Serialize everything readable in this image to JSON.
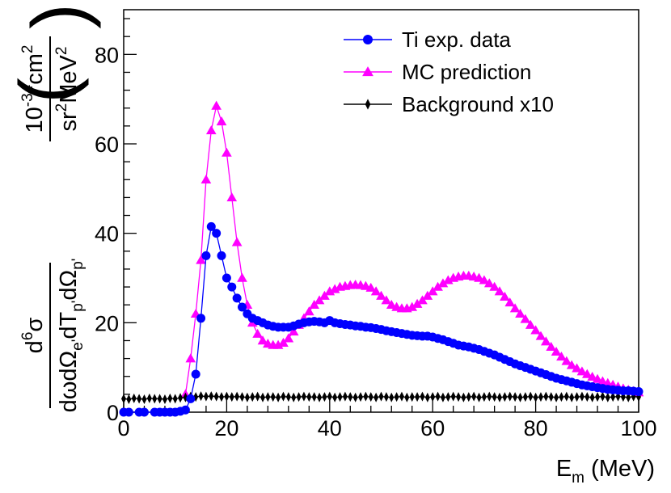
{
  "chart_data": {
    "type": "line",
    "title": "",
    "xlabel": "E",
    "xlabel_sub": "m",
    "xlabel_unit": " (MeV)",
    "ylabel_numerator": "d6σ",
    "ylabel_denominator": "dωdΩe'dTp'dΩp'",
    "ylabel_units_numerator": "10-34cm2",
    "ylabel_units_denominator": "sr2MeV2",
    "xlim": [
      0,
      100
    ],
    "ylim": [
      0,
      90
    ],
    "x_ticks": [
      0,
      20,
      40,
      60,
      80,
      100
    ],
    "y_ticks": [
      0,
      20,
      40,
      60,
      80
    ],
    "grid": false,
    "legend_position": "top-right",
    "series": [
      {
        "name": "Ti exp. data",
        "color": "#0000ff",
        "marker": "circle",
        "x": [
          0,
          1,
          3,
          4,
          6,
          7,
          8,
          9,
          10,
          11,
          12,
          13,
          14,
          15,
          16,
          17,
          18,
          19,
          20,
          21,
          22,
          23,
          24,
          25,
          26,
          27,
          28,
          29,
          30,
          31,
          32,
          33,
          34,
          35,
          36,
          37,
          38,
          39,
          40,
          41,
          42,
          43,
          44,
          45,
          46,
          47,
          48,
          49,
          50,
          51,
          52,
          53,
          54,
          55,
          56,
          57,
          58,
          59,
          60,
          61,
          62,
          63,
          64,
          65,
          66,
          67,
          68,
          69,
          70,
          71,
          72,
          73,
          74,
          75,
          76,
          77,
          78,
          79,
          80,
          81,
          82,
          83,
          84,
          85,
          86,
          87,
          88,
          89,
          90,
          91,
          92,
          93,
          94,
          95,
          96,
          97,
          98,
          99,
          100
        ],
        "y": [
          0,
          0,
          0,
          0,
          0,
          0,
          0,
          0,
          0,
          0.2,
          0.5,
          3,
          8.5,
          21,
          35,
          41.5,
          40,
          35,
          30,
          28,
          25.5,
          23.5,
          22,
          21,
          20.5,
          20,
          19.5,
          19.2,
          19,
          19,
          19,
          19.3,
          19.7,
          20,
          20.2,
          20.3,
          20.2,
          20,
          20.5,
          20,
          19.8,
          19.6,
          19.5,
          19.3,
          19.2,
          19,
          18.9,
          18.7,
          18.5,
          18.2,
          18,
          17.8,
          17.6,
          17.4,
          17.2,
          17.1,
          17,
          17,
          16.8,
          16.5,
          16.2,
          15.8,
          15.4,
          15,
          14.8,
          14.6,
          14.3,
          14,
          13.6,
          13.2,
          12.8,
          12.3,
          11.8,
          11.3,
          10.8,
          10.4,
          10,
          9.6,
          9.2,
          8.8,
          8.4,
          8,
          7.6,
          7.3,
          7,
          6.7,
          6.4,
          6.1,
          5.9,
          5.7,
          5.5,
          5.3,
          5.1,
          5,
          4.9,
          4.8,
          4.8,
          4.7,
          4.6
        ]
      },
      {
        "name": "MC prediction",
        "color": "#ff00ff",
        "marker": "triangle",
        "x": [
          12,
          13,
          14,
          15,
          16,
          17,
          18,
          19,
          20,
          21,
          22,
          23,
          24,
          25,
          26,
          27,
          28,
          29,
          30,
          31,
          32,
          33,
          34,
          35,
          36,
          37,
          38,
          39,
          40,
          41,
          42,
          43,
          44,
          45,
          46,
          47,
          48,
          49,
          50,
          51,
          52,
          53,
          54,
          55,
          56,
          57,
          58,
          59,
          60,
          61,
          62,
          63,
          64,
          65,
          66,
          67,
          68,
          69,
          70,
          71,
          72,
          73,
          74,
          75,
          76,
          77,
          78,
          79,
          80,
          81,
          82,
          83,
          84,
          85,
          86,
          87,
          88,
          89,
          90,
          91,
          92,
          93,
          94,
          95,
          96,
          97,
          98,
          99,
          100
        ],
        "y": [
          4,
          12,
          22,
          34,
          52,
          63,
          68.5,
          65,
          58,
          48,
          38,
          30,
          24,
          20,
          17.5,
          16,
          15.3,
          15,
          15,
          15.5,
          16.5,
          18,
          19.5,
          21,
          22.5,
          24,
          25,
          26,
          27,
          27.5,
          28,
          28.2,
          28.4,
          28.5,
          28.4,
          28.2,
          27.8,
          27,
          26,
          25,
          24,
          23.5,
          23.2,
          23.2,
          23.5,
          24.2,
          25,
          26,
          27,
          28,
          28.8,
          29.5,
          30,
          30.3,
          30.5,
          30.5,
          30.3,
          30,
          29.5,
          28.8,
          28,
          27,
          25.8,
          24.5,
          23.2,
          22,
          20.8,
          19.5,
          18.3,
          17,
          15.8,
          14.6,
          13.5,
          12.4,
          11.4,
          10.5,
          9.8,
          9.1,
          8.5,
          7.9,
          7.4,
          6.9,
          6.5,
          6.1,
          5.7,
          5.3,
          5,
          4.7,
          4.4
        ]
      },
      {
        "name": "Background x10",
        "color": "#000000",
        "marker": "diamond",
        "x": [
          0,
          1,
          2,
          3,
          4,
          5,
          6,
          7,
          8,
          9,
          10,
          11,
          12,
          13,
          14,
          15,
          16,
          17,
          18,
          19,
          20,
          21,
          22,
          23,
          24,
          25,
          26,
          27,
          28,
          29,
          30,
          31,
          32,
          33,
          34,
          35,
          36,
          37,
          38,
          39,
          40,
          41,
          42,
          43,
          44,
          45,
          46,
          47,
          48,
          49,
          50,
          51,
          52,
          53,
          54,
          55,
          56,
          57,
          58,
          59,
          60,
          61,
          62,
          63,
          64,
          65,
          66,
          67,
          68,
          69,
          70,
          71,
          72,
          73,
          74,
          75,
          76,
          77,
          78,
          79,
          80,
          81,
          82,
          83,
          84,
          85,
          86,
          87,
          88,
          89,
          90,
          91,
          92,
          93,
          94,
          95,
          96,
          97,
          98,
          99,
          100
        ],
        "y": [
          3,
          2.9,
          3.1,
          3,
          2.9,
          3.1,
          3,
          3,
          2.9,
          3.1,
          3,
          3.2,
          3.3,
          3.5,
          3.4,
          3.6,
          3.5,
          3.6,
          3.5,
          3.4,
          3.5,
          3.4,
          3.5,
          3.4,
          3.3,
          3.4,
          3.5,
          3.3,
          3.4,
          3.4,
          3.3,
          3.5,
          3.4,
          3.3,
          3.4,
          3.5,
          3.4,
          3.4,
          3.3,
          3.4,
          3.5,
          3.3,
          3.4,
          3.5,
          3.4,
          3.3,
          3.4,
          3.5,
          3.4,
          3.3,
          3.5,
          3.4,
          3.3,
          3.4,
          3.5,
          3.3,
          3.4,
          3.4,
          3.5,
          3.3,
          3.4,
          3.5,
          3.3,
          3.4,
          3.5,
          3.4,
          3.3,
          3.4,
          3.5,
          3.3,
          3.4,
          3.5,
          3.4,
          3.3,
          3.4,
          3.5,
          3.4,
          3.3,
          3.4,
          3.5,
          3.3,
          3.4,
          3.5,
          3.4,
          3.3,
          3.4,
          3.5,
          3.3,
          3.4,
          3.5,
          3.4,
          3.3,
          3.4,
          3.5,
          3.3,
          3.4,
          3.5,
          3.4,
          3.3,
          3.5,
          3.4
        ]
      }
    ]
  }
}
